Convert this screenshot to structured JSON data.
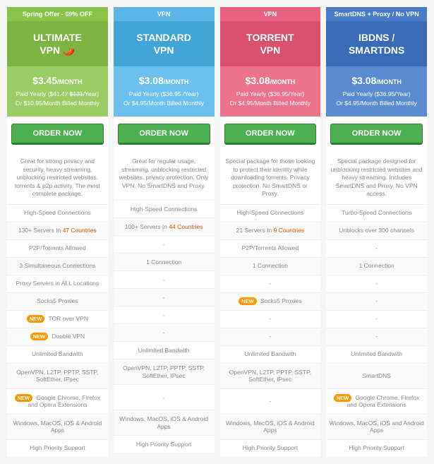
{
  "columns": [
    {
      "offer_bg": "offer-green",
      "title_bg": "title-green",
      "price_bg": "price-green",
      "offer": "Spring Offer - 69% OFF",
      "title": "ULTIMATE\nVPN 🌶️",
      "price": "$3.45",
      "per": "/MONTH",
      "yearly": "Paid Yearly ($41.47 <s>$131</s>/Year)",
      "monthly": "Or $10.95/Month Billed Monthly",
      "button": "ORDER NOW",
      "desc": "Great for strong privacy and security, heavy streaming, unblocking restricted websites, torrents & p2p activity. The most complete package.",
      "rows": [
        "High-Speed Connections",
        "130+ Servers In <hl>47 Countries</hl>",
        "P2P/Torrents Allowed",
        "3 Simultaneous Connections",
        "Proxy Servers in ALL Locations",
        "Socks5 Proxies",
        "<new>NEW</new> TOR over VPN",
        "<new>NEW</new> Double VPN",
        "Unlimited Bandwith",
        "OpenVPN, L2TP, PPTP, SSTP, SoftEther, IPsec",
        "<new>NEW</new> Google Chrome, Firefox and Opera Extensions",
        "Windows, MacOS, iOS & Android Apps",
        "High Priority Support"
      ]
    },
    {
      "offer_bg": "offer-blue",
      "title_bg": "title-blue",
      "price_bg": "price-blue",
      "offer": "VPN",
      "title": "STANDARD\nVPN",
      "price": "$3.08",
      "per": "/MONTH",
      "yearly": "Paid Yearly ($36.95 /Year)",
      "monthly": "Or $4.95/Month Billed Monthly",
      "button": "ORDER NOW",
      "desc": "Great for regular usage, streaming, unblocking restricted websites, privacy protection. Only VPN. No SmartDNS and Proxy.",
      "rows": [
        "High-Speed Connections",
        "100+ Servers In <hl>44 Countries</hl>",
        "-",
        "1 Connection",
        "-",
        "-",
        "-",
        "-",
        "Unlimited Bandwith",
        "OpenVPN, L2TP, PPTP, SSTP, SoftEther, IPsec",
        "-",
        "Windows, MacOS, iOS & Android Apps",
        "High Priority Support"
      ]
    },
    {
      "offer_bg": "offer-red",
      "title_bg": "title-red",
      "price_bg": "price-red",
      "offer": "VPN",
      "title": "TORRENT\nVPN",
      "price": "$3.08",
      "per": "/MONTH",
      "yearly": "Paid Yearly ($36.95/Year)",
      "monthly": "Or $4.95/Month Billed Monthly",
      "button": "ORDER NOW",
      "desc": "Special package for those looking to protect their identity while downloading torrents. Privacy protection. No SmartDNS or Proxy.",
      "rows": [
        "High-Speed Connections",
        "21 Servers In <hl>9 Countries</hl>",
        "P2P/Torrents Allowed",
        "1 Connection",
        "-",
        "<new>NEW</new> Socks5 Proxies",
        "-",
        "-",
        "Unlimited Bandwith",
        "OpenVPN, L2TP, PPTP, SSTP, SoftEther, IPsec",
        "-",
        "Windows, MacOS, iOS & Android Apps",
        "High Priority Support"
      ]
    },
    {
      "offer_bg": "offer-purple",
      "title_bg": "title-purple",
      "price_bg": "price-purple",
      "offer": "SmartDNS + Proxy / No VPN",
      "title": "IBDNS /\nSMARTDNS",
      "price": "$3.08",
      "per": "/MONTH",
      "yearly": "Paid Yearly ($36.95/Year)",
      "monthly": "Or $4.95/Month Billed Monthly",
      "button": "ORDER NOW",
      "desc": "Special package designed for unblocking restricted websites and heavy streaming. Includes SmartDNS and Proxy. No VPN access.",
      "rows": [
        "Turbo-Speed Connections",
        "Unblocks over 300 channels",
        "-",
        "1 Connection",
        "-",
        "-",
        "-",
        "-",
        "Unlimited Bandwith",
        "SmartDNS",
        "<new>NEW</new> Google Chrome, Firefox and Opera Extensions",
        "Windows, MacOS, iOS and Android Apps",
        "High Priority Support"
      ]
    }
  ],
  "tall_rows": [
    9,
    10,
    11
  ]
}
